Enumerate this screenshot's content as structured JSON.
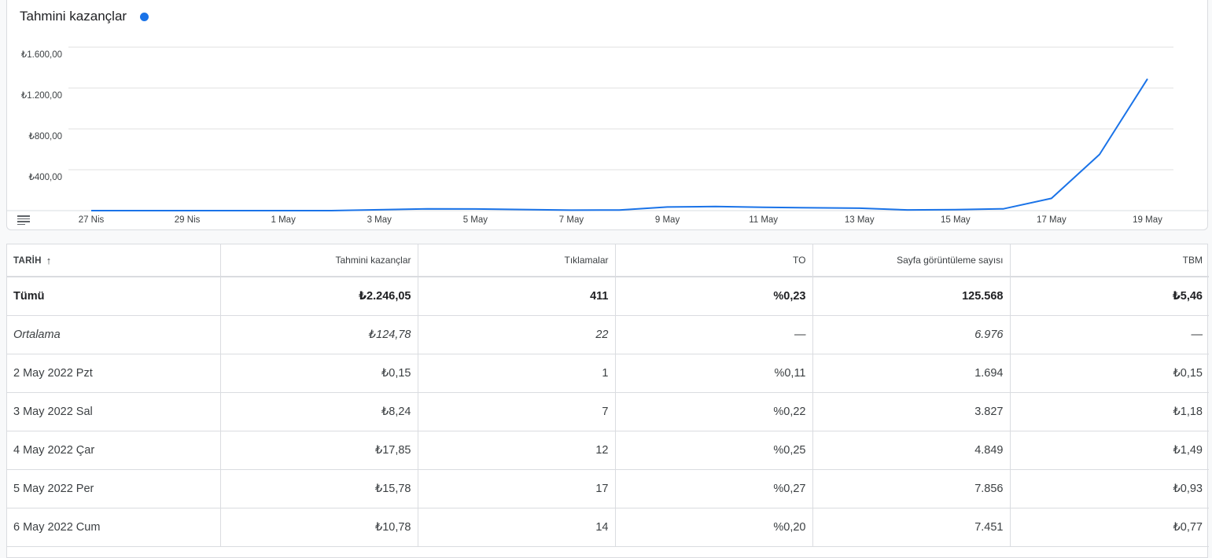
{
  "chart": {
    "title": "Tahmini kazançlar",
    "legend_color": "#1a73e8",
    "line_color": "#1a73e8"
  },
  "chart_data": {
    "type": "line",
    "title": "Tahmini kazançlar",
    "xlabel": "",
    "ylabel": "",
    "ylim": [
      0,
      1600
    ],
    "y_ticks": [
      "₺400,00",
      "₺800,00",
      "₺1.200,00",
      "₺1.600,00"
    ],
    "x_ticks": [
      "27 Nis",
      "29 Nis",
      "1 May",
      "3 May",
      "5 May",
      "7 May",
      "9 May",
      "11 May",
      "13 May",
      "15 May",
      "17 May",
      "19 May"
    ],
    "x": [
      "27 Nis",
      "28 Nis",
      "29 Nis",
      "30 Nis",
      "1 May",
      "2 May",
      "3 May",
      "4 May",
      "5 May",
      "6 May",
      "7 May",
      "8 May",
      "9 May",
      "10 May",
      "11 May",
      "12 May",
      "13 May",
      "14 May",
      "15 May",
      "16 May",
      "17 May",
      "18 May",
      "19 May"
    ],
    "series": [
      {
        "values": [
          0,
          0,
          0,
          0,
          0,
          0.15,
          8.24,
          17.85,
          15.78,
          10.78,
          5,
          6,
          35,
          40,
          32,
          28,
          24,
          7,
          10,
          18,
          120,
          550,
          1290
        ]
      }
    ],
    "grid": true
  },
  "table": {
    "columns": [
      "TARİH",
      "Tahmini kazançlar",
      "Tıklamalar",
      "TO",
      "Sayfa görüntüleme sayısı",
      "TBM"
    ],
    "total": [
      "Tümü",
      "₺2.246,05",
      "411",
      "%0,23",
      "125.568",
      "₺5,46"
    ],
    "average": [
      "Ortalama",
      "₺124,78",
      "22",
      "—",
      "6.976",
      "—"
    ],
    "rows": [
      [
        "2 May 2022 Pzt",
        "₺0,15",
        "1",
        "%0,11",
        "1.694",
        "₺0,15"
      ],
      [
        "3 May 2022 Sal",
        "₺8,24",
        "7",
        "%0,22",
        "3.827",
        "₺1,18"
      ],
      [
        "4 May 2022 Çar",
        "₺17,85",
        "12",
        "%0,25",
        "4.849",
        "₺1,49"
      ],
      [
        "5 May 2022 Per",
        "₺15,78",
        "17",
        "%0,27",
        "7.856",
        "₺0,93"
      ],
      [
        "6 May 2022 Cum",
        "₺10,78",
        "14",
        "%0,20",
        "7.451",
        "₺0,77"
      ]
    ]
  },
  "icons": {
    "sort": "arrow-up-icon",
    "menu": "menu-icon",
    "legend": "legend-dot"
  }
}
